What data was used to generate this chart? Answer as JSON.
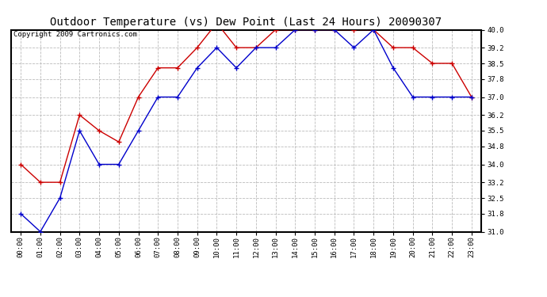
{
  "title": "Outdoor Temperature (vs) Dew Point (Last 24 Hours) 20090307",
  "copyright": "Copyright 2009 Cartronics.com",
  "x_labels": [
    "00:00",
    "01:00",
    "02:00",
    "03:00",
    "04:00",
    "05:00",
    "06:00",
    "07:00",
    "08:00",
    "09:00",
    "10:00",
    "11:00",
    "12:00",
    "13:00",
    "14:00",
    "15:00",
    "16:00",
    "17:00",
    "18:00",
    "19:00",
    "20:00",
    "21:00",
    "22:00",
    "23:00"
  ],
  "temp_data": [
    34.0,
    33.2,
    33.2,
    36.2,
    35.5,
    35.0,
    37.0,
    38.3,
    38.3,
    39.2,
    40.3,
    39.2,
    39.2,
    40.0,
    40.0,
    40.0,
    40.0,
    40.0,
    40.0,
    39.2,
    39.2,
    38.5,
    38.5,
    37.0
  ],
  "dew_data": [
    31.8,
    31.0,
    32.5,
    35.5,
    34.0,
    34.0,
    35.5,
    37.0,
    37.0,
    38.3,
    39.2,
    38.3,
    39.2,
    39.2,
    40.0,
    40.0,
    40.0,
    39.2,
    40.0,
    38.3,
    37.0,
    37.0,
    37.0,
    37.0
  ],
  "temp_color": "#cc0000",
  "dew_color": "#0000cc",
  "ylim": [
    31.0,
    40.0
  ],
  "yticks": [
    31.0,
    31.8,
    32.5,
    33.2,
    34.0,
    34.8,
    35.5,
    36.2,
    37.0,
    37.8,
    38.5,
    39.2,
    40.0
  ],
  "bg_color": "#ffffff",
  "grid_color": "#bbbbbb",
  "title_fontsize": 10,
  "copyright_fontsize": 6.5,
  "tick_fontsize": 6.5
}
